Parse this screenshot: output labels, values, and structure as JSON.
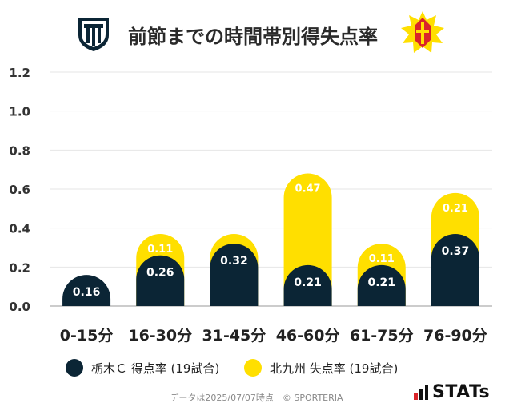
{
  "title": "前節までの時間帯別得失点率",
  "colors": {
    "home": "#0b2535",
    "away": "#ffdf00",
    "grid": "#e6e6e6",
    "axis": "#bbbbbb"
  },
  "legend": {
    "home_label": "栃木Ｃ 得点率 (19試合)",
    "away_label": "北九州 失点率 (19試合)"
  },
  "footer": {
    "note": "データは2025/07/07時点　© SPORTERIA",
    "brand": "STATs"
  },
  "chart_data": {
    "type": "bar",
    "stacked": true,
    "categories": [
      "0-15分",
      "16-30分",
      "31-45分",
      "46-60分",
      "61-75分",
      "76-90分"
    ],
    "series": [
      {
        "name": "栃木Ｃ 得点率 (19試合)",
        "values": [
          0.16,
          0.26,
          0.32,
          0.21,
          0.21,
          0.37
        ],
        "labels": [
          "0.16",
          "0.26",
          "0.32",
          "0.21",
          "0.21",
          "0.37"
        ]
      },
      {
        "name": "北九州 失点率 (19試合)",
        "values": [
          0,
          0.11,
          0.05,
          0.47,
          0.11,
          0.21
        ],
        "labels": [
          "",
          "0.11",
          "",
          "0.47",
          "0.11",
          "0.21"
        ]
      }
    ],
    "yticks": [
      "0.0",
      "0.2",
      "0.4",
      "0.6",
      "0.8",
      "1.0",
      "1.2"
    ],
    "ylim": [
      0,
      1.2
    ],
    "grid": true
  }
}
